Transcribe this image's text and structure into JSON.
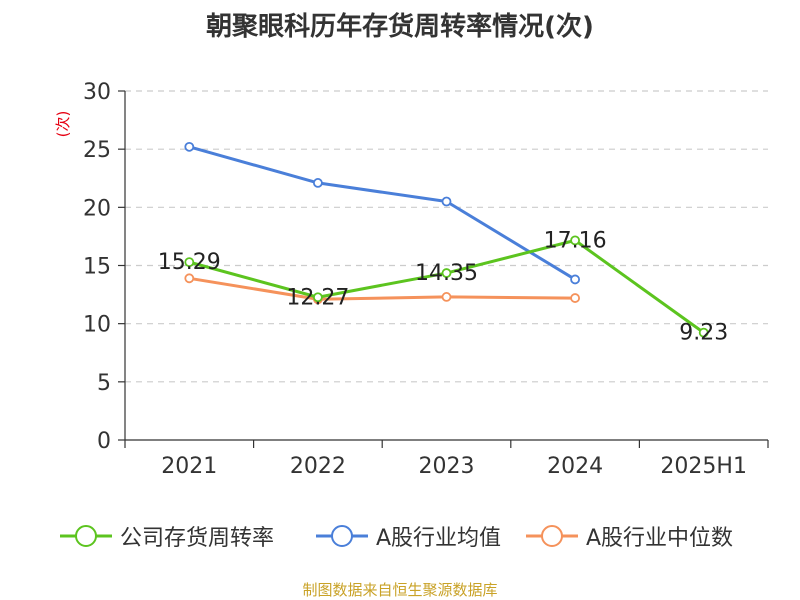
{
  "title": "朝聚眼科历年存货周转率情况(次)",
  "source": "制图数据来自恒生聚源数据库",
  "colors": {
    "company": "#5cc41f",
    "industry_avg": "#4a7fd9",
    "industry_median": "#f5925b",
    "grid": "#cccccc",
    "axis": "#333333",
    "ylabel": "#e60012"
  },
  "chart_data": {
    "type": "line",
    "title": "朝聚眼科历年存货周转率情况(次)",
    "categories": [
      "2021",
      "2022",
      "2023",
      "2024",
      "2025H1"
    ],
    "ylabel": "(次)",
    "ylim": [
      0,
      30
    ],
    "yticks": [
      0,
      5,
      10,
      15,
      20,
      25,
      30
    ],
    "grid": true,
    "legend_position": "bottom",
    "series": [
      {
        "name": "公司存货周转率",
        "color_key": "company",
        "values": [
          15.29,
          12.27,
          14.35,
          17.16,
          9.23
        ],
        "labels": [
          "15.29",
          "12.27",
          "14.35",
          "17.16",
          "9.23"
        ]
      },
      {
        "name": "A股行业均值",
        "color_key": "industry_avg",
        "values": [
          25.2,
          22.1,
          20.5,
          13.8,
          null
        ]
      },
      {
        "name": "A股行业中位数",
        "color_key": "industry_median",
        "values": [
          13.9,
          12.1,
          12.3,
          12.2,
          null
        ]
      }
    ]
  }
}
